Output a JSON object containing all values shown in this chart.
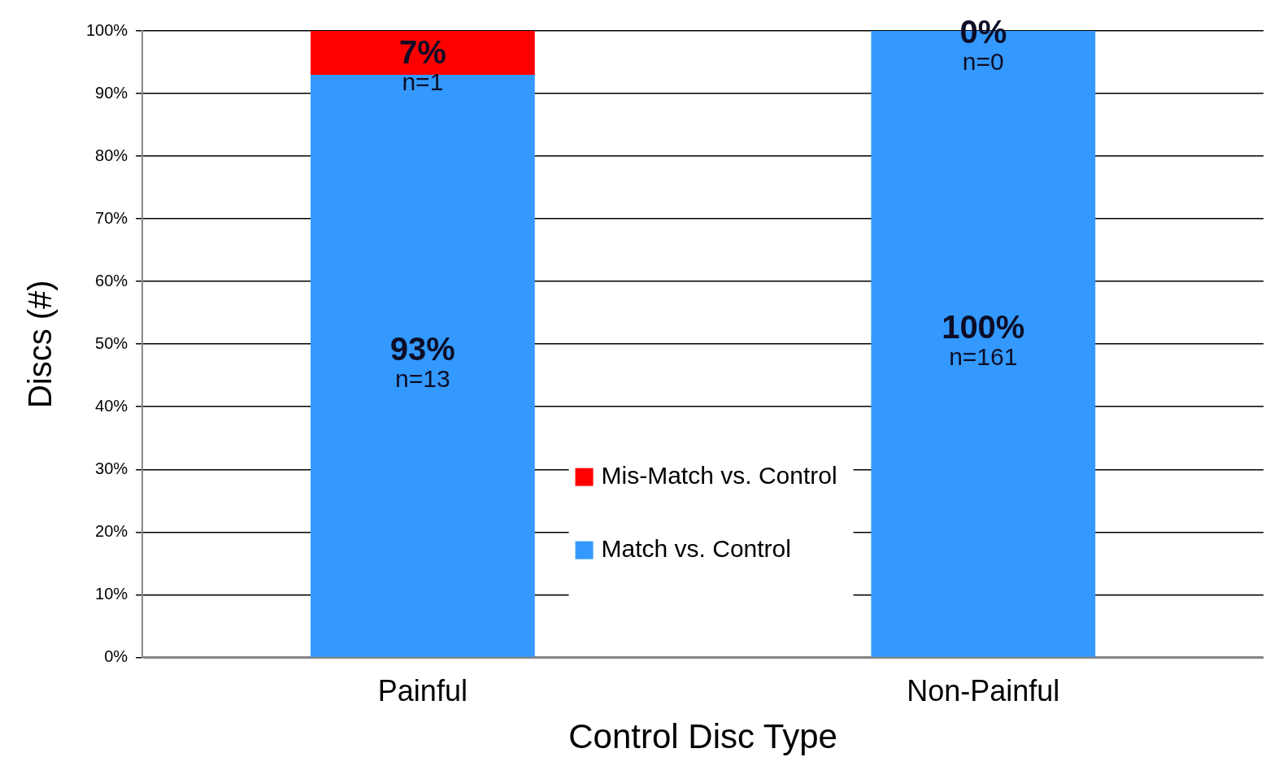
{
  "chart_data": {
    "type": "bar",
    "stacked": true,
    "xlabel": "Control Disc Type",
    "ylabel": "Discs (#)",
    "categories": [
      "Painful",
      "Non-Painful"
    ],
    "series": [
      {
        "name": "Match vs. Control",
        "color": "#3399ff",
        "values": [
          93,
          100
        ],
        "value_labels": [
          "93%\nn=13",
          "100%\nn=161"
        ]
      },
      {
        "name": "Mis-Match vs. Control",
        "color": "#ff0000",
        "values": [
          7,
          0
        ],
        "value_labels": [
          "7%\nn=1",
          "0%\nn=0"
        ]
      }
    ],
    "ylim": [
      0,
      100
    ],
    "yticks": [
      {
        "value": 0,
        "label": "0%"
      },
      {
        "value": 10,
        "label": "10%"
      },
      {
        "value": 20,
        "label": "20%"
      },
      {
        "value": 30,
        "label": "30%"
      },
      {
        "value": 40,
        "label": "40%"
      },
      {
        "value": 50,
        "label": "50%"
      },
      {
        "value": 60,
        "label": "60%"
      },
      {
        "value": 70,
        "label": "70%"
      },
      {
        "value": 80,
        "label": "80%"
      },
      {
        "value": 90,
        "label": "90%"
      },
      {
        "value": 100,
        "label": "100%"
      }
    ],
    "grid": "y",
    "legend": "center"
  }
}
